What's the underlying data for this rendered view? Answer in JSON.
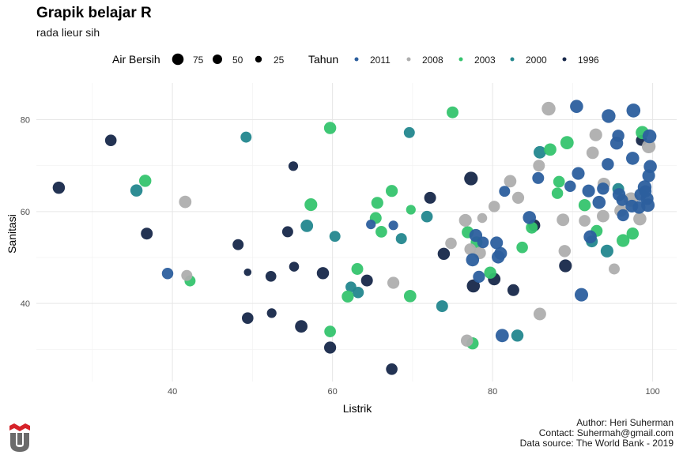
{
  "title": "Grapik belajar R",
  "subtitle": "rada lieur sih",
  "caption": [
    "Author: Heri Suherman",
    "Contact: Suhermah@gmail.com",
    "Data source: The World Bank - 2019"
  ],
  "legend_size": {
    "title": "Air Bersih",
    "items": [
      {
        "label": "75",
        "value": 75
      },
      {
        "label": "50",
        "value": 50
      },
      {
        "label": "25",
        "value": 25
      }
    ]
  },
  "legend_color": {
    "title": "Tahun",
    "items": [
      {
        "label": "2011",
        "color": "#2c5f9e"
      },
      {
        "label": "2008",
        "color": "#aeaeae"
      },
      {
        "label": "2003",
        "color": "#35c46e"
      },
      {
        "label": "2000",
        "color": "#23878e"
      },
      {
        "label": "1996",
        "color": "#17284a"
      }
    ]
  },
  "chart_data": {
    "type": "scatter",
    "title": "Grapik belajar R",
    "subtitle": "rada lieur sih",
    "xlabel": "Listrik",
    "ylabel": "Sanitasi",
    "xlim": [
      23,
      103
    ],
    "ylim": [
      23,
      88
    ],
    "xticks": [
      40,
      60,
      80,
      100
    ],
    "yticks": [
      40,
      60,
      80
    ],
    "grid": true,
    "legend_position": "top",
    "size_variable": "Air Bersih",
    "color_variable": "Tahun",
    "series": [
      {
        "name": "1996",
        "color": "#17284a",
        "points": [
          [
            25.8,
            65.2,
            52
          ],
          [
            32.3,
            75.5,
            45
          ],
          [
            36.8,
            55.2,
            48
          ],
          [
            48.2,
            52.8,
            40
          ],
          [
            49.4,
            46.8,
            14
          ],
          [
            49.4,
            36.8,
            45
          ],
          [
            52.3,
            45.9,
            38
          ],
          [
            52.4,
            37.9,
            28
          ],
          [
            54.4,
            55.6,
            40
          ],
          [
            55.1,
            69.9,
            28
          ],
          [
            55.2,
            48.0,
            30
          ],
          [
            56.1,
            35.0,
            55
          ],
          [
            58.8,
            46.6,
            52
          ],
          [
            59.7,
            30.4,
            50
          ],
          [
            64.3,
            45.0,
            48
          ],
          [
            67.4,
            25.7,
            45
          ],
          [
            72.2,
            63.0,
            48
          ],
          [
            73.9,
            50.8,
            52
          ],
          [
            77.3,
            67.2,
            68
          ],
          [
            77.6,
            43.8,
            62
          ],
          [
            80.2,
            45.3,
            55
          ],
          [
            82.6,
            42.9,
            48
          ],
          [
            85.2,
            57.0,
            50
          ],
          [
            89.1,
            48.2,
            58
          ],
          [
            98.6,
            75.5,
            40
          ]
        ]
      },
      {
        "name": "2000",
        "color": "#23878e",
        "points": [
          [
            35.5,
            64.6,
            52
          ],
          [
            49.2,
            76.2,
            40
          ],
          [
            56.8,
            56.9,
            55
          ],
          [
            60.3,
            54.6,
            40
          ],
          [
            62.3,
            43.6,
            38
          ],
          [
            63.2,
            42.4,
            44
          ],
          [
            68.6,
            54.1,
            40
          ],
          [
            69.6,
            77.2,
            40
          ],
          [
            71.8,
            58.9,
            46
          ],
          [
            73.7,
            39.4,
            48
          ],
          [
            83.1,
            33.0,
            52
          ],
          [
            85.9,
            72.9,
            55
          ],
          [
            92.4,
            53.5,
            48
          ],
          [
            94.3,
            51.4,
            58
          ],
          [
            95.7,
            64.9,
            48
          ]
        ]
      },
      {
        "name": "2003",
        "color": "#35c46e",
        "points": [
          [
            36.6,
            66.7,
            52
          ],
          [
            42.2,
            44.9,
            40
          ],
          [
            57.3,
            61.5,
            58
          ],
          [
            59.7,
            78.2,
            52
          ],
          [
            59.7,
            33.9,
            46
          ],
          [
            61.9,
            41.5,
            50
          ],
          [
            63.1,
            47.5,
            48
          ],
          [
            65.4,
            58.6,
            48
          ],
          [
            65.6,
            61.9,
            50
          ],
          [
            66.1,
            55.6,
            46
          ],
          [
            67.4,
            64.5,
            50
          ],
          [
            69.7,
            41.6,
            54
          ],
          [
            69.8,
            60.4,
            28
          ],
          [
            75.0,
            81.6,
            48
          ],
          [
            76.9,
            55.5,
            50
          ],
          [
            77.5,
            31.3,
            52
          ],
          [
            78.0,
            53.3,
            48
          ],
          [
            79.7,
            46.7,
            52
          ],
          [
            83.7,
            52.2,
            45
          ],
          [
            84.9,
            56.5,
            48
          ],
          [
            87.2,
            73.5,
            54
          ],
          [
            88.3,
            66.5,
            46
          ],
          [
            88.1,
            64.0,
            44
          ],
          [
            89.3,
            75.0,
            64
          ],
          [
            91.5,
            61.4,
            52
          ],
          [
            93.0,
            55.8,
            48
          ],
          [
            96.3,
            53.7,
            60
          ],
          [
            97.5,
            55.2,
            52
          ],
          [
            98.7,
            77.2,
            62
          ]
        ]
      },
      {
        "name": "2008",
        "color": "#aeaeae",
        "points": [
          [
            41.6,
            62.1,
            55
          ],
          [
            41.8,
            46.1,
            40
          ],
          [
            67.6,
            44.5,
            50
          ],
          [
            74.8,
            53.1,
            45
          ],
          [
            76.6,
            58.1,
            58
          ],
          [
            76.8,
            31.9,
            52
          ],
          [
            77.2,
            51.8,
            46
          ],
          [
            78.4,
            51.0,
            54
          ],
          [
            78.7,
            58.6,
            30
          ],
          [
            80.2,
            61.1,
            44
          ],
          [
            82.2,
            66.6,
            54
          ],
          [
            83.2,
            63.0,
            50
          ],
          [
            85.8,
            70.0,
            48
          ],
          [
            85.9,
            37.7,
            56
          ],
          [
            87.0,
            82.4,
            70
          ],
          [
            88.8,
            58.2,
            56
          ],
          [
            89.0,
            51.4,
            52
          ],
          [
            91.5,
            58.0,
            46
          ],
          [
            92.5,
            72.8,
            54
          ],
          [
            92.9,
            76.7,
            58
          ],
          [
            93.9,
            66.0,
            56
          ],
          [
            96.0,
            60.2,
            56
          ],
          [
            97.3,
            62.6,
            80
          ],
          [
            98.4,
            58.4,
            62
          ],
          [
            99.5,
            74.2,
            70
          ],
          [
            93.8,
            59.0,
            55
          ],
          [
            95.2,
            47.5,
            40
          ]
        ]
      },
      {
        "name": "2011",
        "color": "#2c5f9e",
        "points": [
          [
            39.4,
            46.5,
            44
          ],
          [
            64.8,
            57.2,
            28
          ],
          [
            67.6,
            57.0,
            28
          ],
          [
            77.9,
            54.8,
            60
          ],
          [
            77.5,
            49.5,
            62
          ],
          [
            78.8,
            53.3,
            46
          ],
          [
            78.3,
            45.8,
            50
          ],
          [
            81.5,
            64.4,
            40
          ],
          [
            81.0,
            50.9,
            58
          ],
          [
            80.7,
            50.1,
            60
          ],
          [
            80.5,
            53.2,
            58
          ],
          [
            81.2,
            33.0,
            64
          ],
          [
            84.6,
            58.7,
            62
          ],
          [
            85.7,
            67.3,
            48
          ],
          [
            89.7,
            65.5,
            44
          ],
          [
            90.7,
            68.3,
            58
          ],
          [
            90.5,
            82.9,
            62
          ],
          [
            91.1,
            41.9,
            66
          ],
          [
            93.8,
            65.0,
            52
          ],
          [
            92.2,
            54.5,
            62
          ],
          [
            92.0,
            64.5,
            58
          ],
          [
            93.3,
            62.0,
            62
          ],
          [
            94.5,
            80.8,
            70
          ],
          [
            95.5,
            74.9,
            60
          ],
          [
            94.4,
            70.3,
            52
          ],
          [
            95.7,
            76.5,
            52
          ],
          [
            95.8,
            63.7,
            60
          ],
          [
            96.2,
            62.5,
            48
          ],
          [
            96.3,
            59.2,
            50
          ],
          [
            97.5,
            71.6,
            62
          ],
          [
            97.4,
            61.2,
            58
          ],
          [
            97.6,
            82.0,
            72
          ],
          [
            98.3,
            60.9,
            58
          ],
          [
            98.5,
            63.7,
            54
          ],
          [
            99.0,
            65.3,
            70
          ],
          [
            99.3,
            62.8,
            60
          ],
          [
            99.4,
            61.4,
            66
          ],
          [
            99.5,
            67.8,
            58
          ],
          [
            99.6,
            76.4,
            72
          ],
          [
            99.7,
            69.8,
            62
          ],
          [
            99.1,
            64.4,
            52
          ]
        ]
      }
    ]
  }
}
